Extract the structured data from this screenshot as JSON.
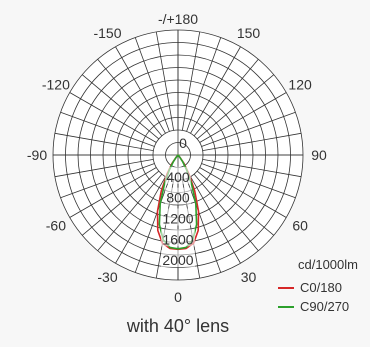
{
  "chart_data": {
    "type": "polar",
    "unit_label": "cd/1000lm",
    "angle_ticks": [
      {
        "label": "-/+180",
        "angle": 180
      },
      {
        "label": "150",
        "angle": 150
      },
      {
        "label": "120",
        "angle": 120
      },
      {
        "label": "90",
        "angle": 90
      },
      {
        "label": "60",
        "angle": 60
      },
      {
        "label": "30",
        "angle": 30
      },
      {
        "label": "0",
        "angle": 0
      },
      {
        "label": "-30",
        "angle": -30
      },
      {
        "label": "-60",
        "angle": -60
      },
      {
        "label": "-90",
        "angle": -90
      },
      {
        "label": "-120",
        "angle": -120
      },
      {
        "label": "-150",
        "angle": -150
      }
    ],
    "radial_ticks": [
      "0",
      "400",
      "800",
      "1200",
      "1600",
      "2000"
    ],
    "radial_values": [
      0,
      400,
      800,
      1200,
      1600,
      2000
    ],
    "rmax": 2400,
    "series": [
      {
        "name": "C0/180",
        "color": "#d62728",
        "points": [
          [
            -180,
            0
          ],
          [
            -90,
            0
          ],
          [
            -45,
            0
          ],
          [
            -40,
            60
          ],
          [
            -35,
            200
          ],
          [
            -30,
            420
          ],
          [
            -25,
            760
          ],
          [
            -20,
            1150
          ],
          [
            -15,
            1500
          ],
          [
            -10,
            1720
          ],
          [
            -5,
            1800
          ],
          [
            0,
            1810
          ],
          [
            5,
            1800
          ],
          [
            10,
            1720
          ],
          [
            15,
            1500
          ],
          [
            20,
            1150
          ],
          [
            25,
            760
          ],
          [
            30,
            420
          ],
          [
            35,
            200
          ],
          [
            40,
            60
          ],
          [
            45,
            0
          ],
          [
            90,
            0
          ],
          [
            180,
            0
          ]
        ]
      },
      {
        "name": "C90/270",
        "color": "#2ca02c",
        "points": [
          [
            -180,
            0
          ],
          [
            -90,
            0
          ],
          [
            -45,
            0
          ],
          [
            -40,
            40
          ],
          [
            -35,
            150
          ],
          [
            -30,
            330
          ],
          [
            -25,
            620
          ],
          [
            -20,
            1000
          ],
          [
            -15,
            1380
          ],
          [
            -10,
            1650
          ],
          [
            -5,
            1780
          ],
          [
            0,
            1800
          ],
          [
            5,
            1780
          ],
          [
            10,
            1650
          ],
          [
            15,
            1380
          ],
          [
            20,
            1000
          ],
          [
            25,
            620
          ],
          [
            30,
            330
          ],
          [
            35,
            150
          ],
          [
            40,
            40
          ],
          [
            45,
            0
          ],
          [
            90,
            0
          ],
          [
            180,
            0
          ]
        ]
      }
    ]
  },
  "caption": "with 40° lens"
}
